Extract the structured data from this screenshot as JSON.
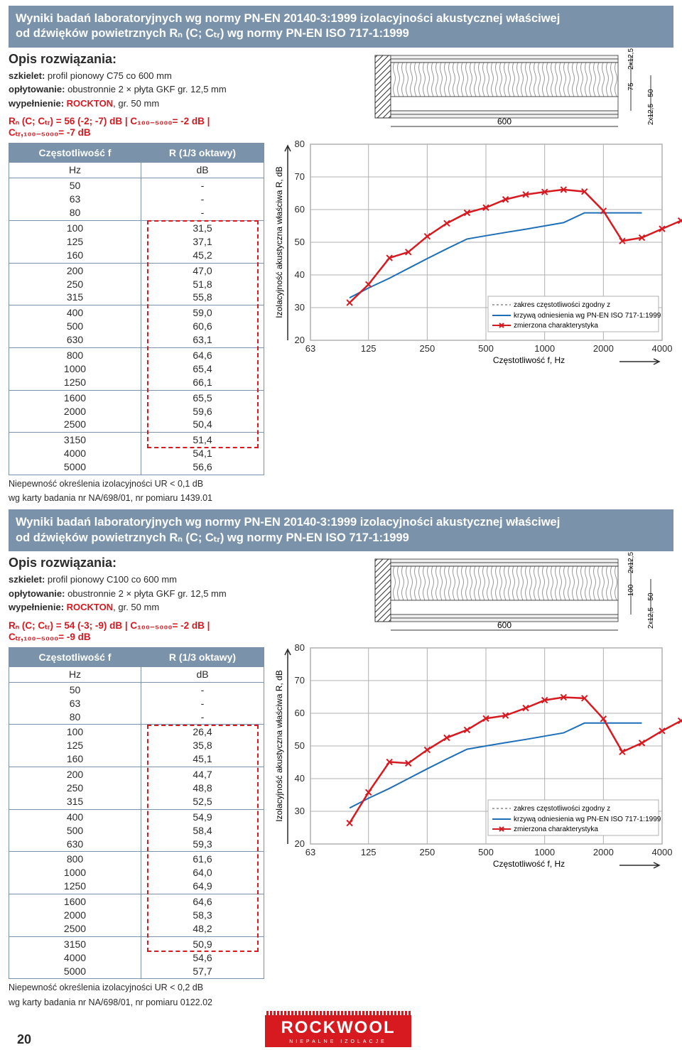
{
  "page_number": "20",
  "logo": {
    "brand": "ROCKWOOL",
    "tagline": "NIEPALNE IZOLACJE",
    "bg": "#d71920",
    "fg": "#ffffff"
  },
  "sections": [
    {
      "banner_line1": "Wyniki badań laboratoryjnych wg normy PN-EN 20140-3:1999 izolacyjności akustycznej właściwej",
      "banner_line2": "od dźwięków powietrznych Rₙ (C; Cₜᵣ) wg normy PN-EN ISO 717-1:1999",
      "opis_title": "Opis rozwiązania:",
      "opis_lines": [
        {
          "label": "szkielet:",
          "text": " profil pionowy C75 co 600 mm"
        },
        {
          "label": "opłytowanie:",
          "text": " obustronnie 2 × płyta GKF gr. 12,5 mm"
        },
        {
          "label": "wypełnienie:",
          "red": "ROCKTON",
          "text2": ", gr. 50 mm"
        }
      ],
      "formula": "Rₙ (C; Cₜᵣ) = 56 (-2; -7) dB | C₁₀₀₋₅₀₀₀= -2 dB | Cₜᵣ,₁₀₀₋₅₀₀₀= -7 dB",
      "table_headers": [
        "Częstotliwość f",
        "R (1/3 oktawy)"
      ],
      "table_subheaders": [
        "Hz",
        "dB"
      ],
      "table_rows": [
        [
          "50\n63\n80",
          "-\n-\n-"
        ],
        [
          "100\n125\n160",
          "31,5\n37,1\n45,2"
        ],
        [
          "200\n250\n315",
          "47,0\n51,8\n55,8"
        ],
        [
          "400\n500\n630",
          "59,0\n60,6\n63,1"
        ],
        [
          "800\n1000\n1250",
          "64,6\n65,4\n66,1"
        ],
        [
          "1600\n2000\n2500",
          "65,5\n59,6\n50,4"
        ],
        [
          "3150\n4000\n5000",
          "51,4\n54,1\n56,6"
        ]
      ],
      "dash_range": {
        "start_row": 1,
        "end_row": 6,
        "partial_last": 1
      },
      "footnote1": "Niepewność określenia izolacyjności UR < 0,1 dB",
      "footnote2": "wg karty badania nr NA/698/01, nr pomiaru 1439.01",
      "diagram": {
        "span": "600",
        "h1": "2x12,5",
        "h2": "75",
        "h3": "2x12,5",
        "h4": "50"
      },
      "chart": {
        "xlabel": "Częstotliwość f, Hz",
        "ylabel": "Izolacyjność akustyczna właściwa R, dB",
        "ylim": [
          20,
          80
        ],
        "ytick": [
          20,
          30,
          40,
          50,
          60,
          70,
          80
        ],
        "xticks": [
          63,
          125,
          250,
          500,
          1000,
          2000,
          4000
        ],
        "blue_curve": [
          [
            100,
            33
          ],
          [
            125,
            36
          ],
          [
            160,
            39
          ],
          [
            200,
            42
          ],
          [
            250,
            45
          ],
          [
            315,
            48
          ],
          [
            400,
            51
          ],
          [
            500,
            52
          ],
          [
            630,
            53
          ],
          [
            800,
            54
          ],
          [
            1000,
            55
          ],
          [
            1250,
            56
          ],
          [
            1600,
            59
          ],
          [
            2000,
            59
          ],
          [
            2500,
            59
          ],
          [
            3150,
            59
          ]
        ],
        "red_curve": [
          [
            100,
            31.5
          ],
          [
            125,
            37.1
          ],
          [
            160,
            45.2
          ],
          [
            200,
            47.0
          ],
          [
            250,
            51.8
          ],
          [
            315,
            55.8
          ],
          [
            400,
            59.0
          ],
          [
            500,
            60.6
          ],
          [
            630,
            63.1
          ],
          [
            800,
            64.6
          ],
          [
            1000,
            65.4
          ],
          [
            1250,
            66.1
          ],
          [
            1600,
            65.5
          ],
          [
            2000,
            59.6
          ],
          [
            2500,
            50.4
          ],
          [
            3150,
            51.4
          ],
          [
            4000,
            54.1
          ],
          [
            5000,
            56.6
          ]
        ],
        "legend": [
          "zakres częstotliwości zgodny z",
          "krzywą odniesienia wg PN-EN ISO 717-1:1999",
          "zmierzona charakterystyka"
        ],
        "colors": {
          "grid": "#b0b0b0",
          "blue": "#1e6fb8",
          "red": "#d71920",
          "axis": "#2b2b2b"
        }
      }
    },
    {
      "banner_line1": "Wyniki badań laboratoryjnych wg normy PN-EN 20140-3:1999 izolacyjności akustycznej właściwej",
      "banner_line2": "od dźwięków powietrznych Rₙ (C; Cₜᵣ) wg normy PN-EN ISO 717-1:1999",
      "opis_title": "Opis rozwiązania:",
      "opis_lines": [
        {
          "label": "szkielet:",
          "text": " profil pionowy C100 co 600 mm"
        },
        {
          "label": "opłytowanie:",
          "text": " obustronnie 2 × płyta GKF gr. 12,5 mm"
        },
        {
          "label": "wypełnienie:",
          "red": "ROCKTON",
          "text2": ", gr. 50 mm"
        }
      ],
      "formula": "Rₙ (C; Cₜᵣ) = 54 (-3; -9) dB | C₁₀₀₋₅₀₀₀= -2 dB | Cₜᵣ,₁₀₀₋₅₀₀₀= -9 dB",
      "table_headers": [
        "Częstotliwość f",
        "R (1/3 oktawy)"
      ],
      "table_subheaders": [
        "Hz",
        "dB"
      ],
      "table_rows": [
        [
          "50\n63\n80",
          "-\n-\n-"
        ],
        [
          "100\n125\n160",
          "26,4\n35,8\n45,1"
        ],
        [
          "200\n250\n315",
          "44,7\n48,8\n52,5"
        ],
        [
          "400\n500\n630",
          "54,9\n58,4\n59,3"
        ],
        [
          "800\n1000\n1250",
          "61,6\n64,0\n64,9"
        ],
        [
          "1600\n2000\n2500",
          "64,6\n58,3\n48,2"
        ],
        [
          "3150\n4000\n5000",
          "50,9\n54,6\n57,7"
        ]
      ],
      "dash_range": {
        "start_row": 1,
        "end_row": 6,
        "partial_last": 1
      },
      "footnote1": "Niepewność określenia izolacyjności UR < 0,2 dB",
      "footnote2": "wg karty badania nr NA/698/01, nr pomiaru 0122.02",
      "diagram": {
        "span": "600",
        "h1": "2x12,5",
        "h2": "100",
        "h3": "2x12,5",
        "h4": "50"
      },
      "chart": {
        "xlabel": "Częstotliwość f, Hz",
        "ylabel": "Izolacyjność akustyczna właściwa R, dB",
        "ylim": [
          20,
          80
        ],
        "ytick": [
          20,
          30,
          40,
          50,
          60,
          70,
          80
        ],
        "xticks": [
          63,
          125,
          250,
          500,
          1000,
          2000,
          4000
        ],
        "blue_curve": [
          [
            100,
            31
          ],
          [
            125,
            34
          ],
          [
            160,
            37
          ],
          [
            200,
            40
          ],
          [
            250,
            43
          ],
          [
            315,
            46
          ],
          [
            400,
            49
          ],
          [
            500,
            50
          ],
          [
            630,
            51
          ],
          [
            800,
            52
          ],
          [
            1000,
            53
          ],
          [
            1250,
            54
          ],
          [
            1600,
            57
          ],
          [
            2000,
            57
          ],
          [
            2500,
            57
          ],
          [
            3150,
            57
          ]
        ],
        "red_curve": [
          [
            100,
            26.4
          ],
          [
            125,
            35.8
          ],
          [
            160,
            45.1
          ],
          [
            200,
            44.7
          ],
          [
            250,
            48.8
          ],
          [
            315,
            52.5
          ],
          [
            400,
            54.9
          ],
          [
            500,
            58.4
          ],
          [
            630,
            59.3
          ],
          [
            800,
            61.6
          ],
          [
            1000,
            64.0
          ],
          [
            1250,
            64.9
          ],
          [
            1600,
            64.6
          ],
          [
            2000,
            58.3
          ],
          [
            2500,
            48.2
          ],
          [
            3150,
            50.9
          ],
          [
            4000,
            54.6
          ],
          [
            5000,
            57.7
          ]
        ],
        "legend": [
          "zakres częstotliwości zgodny z",
          "krzywą odniesienia wg PN-EN ISO 717-1:1999",
          "zmierzona charakterystyka"
        ],
        "colors": {
          "grid": "#b0b0b0",
          "blue": "#1e6fb8",
          "red": "#d71920",
          "axis": "#2b2b2b"
        }
      }
    }
  ]
}
